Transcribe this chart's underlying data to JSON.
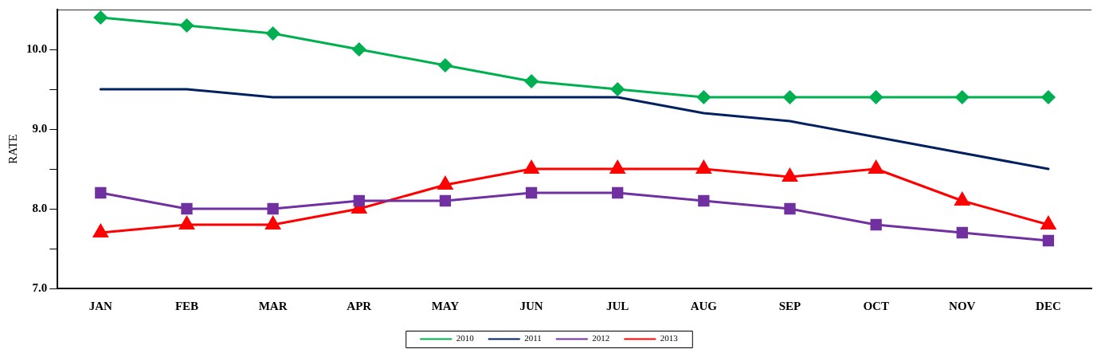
{
  "chart_data": {
    "type": "line",
    "ylabel": "RATE",
    "categories": [
      "JAN",
      "FEB",
      "MAR",
      "APR",
      "MAY",
      "JUN",
      "JUL",
      "AUG",
      "SEP",
      "OCT",
      "NOV",
      "DEC"
    ],
    "ylim": [
      7,
      10.5
    ],
    "yticks": [
      {
        "value": 7,
        "label": "7.0"
      },
      {
        "value": 7.5,
        "label": null
      },
      {
        "value": 8,
        "label": "8.0"
      },
      {
        "value": 8.5,
        "label": null
      },
      {
        "value": 9,
        "label": "9.0"
      },
      {
        "value": 9.5,
        "label": null
      },
      {
        "value": 10,
        "label": "10.0"
      }
    ],
    "grid": false,
    "legend": "bottom",
    "line_style": "solid",
    "series": [
      {
        "name": "2010",
        "color": "#00b050",
        "marker": "diamond",
        "values": [
          10.4,
          10.3,
          10.2,
          10.0,
          9.8,
          9.6,
          9.5,
          9.4,
          9.4,
          9.4,
          9.4,
          9.4
        ]
      },
      {
        "name": "2011",
        "color": "#002060",
        "marker": "none",
        "values": [
          9.5,
          9.5,
          9.4,
          9.4,
          9.4,
          9.4,
          9.4,
          9.2,
          9.1,
          8.9,
          8.7,
          8.5
        ]
      },
      {
        "name": "2012",
        "color": "#7030a0",
        "marker": "square",
        "values": [
          8.2,
          8.0,
          8.0,
          8.1,
          8.1,
          8.2,
          8.2,
          8.1,
          8.0,
          7.8,
          7.7,
          7.6
        ]
      },
      {
        "name": "2013",
        "color": "#ff0000",
        "marker": "triangle",
        "values": [
          7.7,
          7.8,
          7.8,
          8.0,
          8.3,
          8.5,
          8.5,
          8.5,
          8.4,
          8.5,
          8.1,
          7.8
        ]
      }
    ]
  }
}
